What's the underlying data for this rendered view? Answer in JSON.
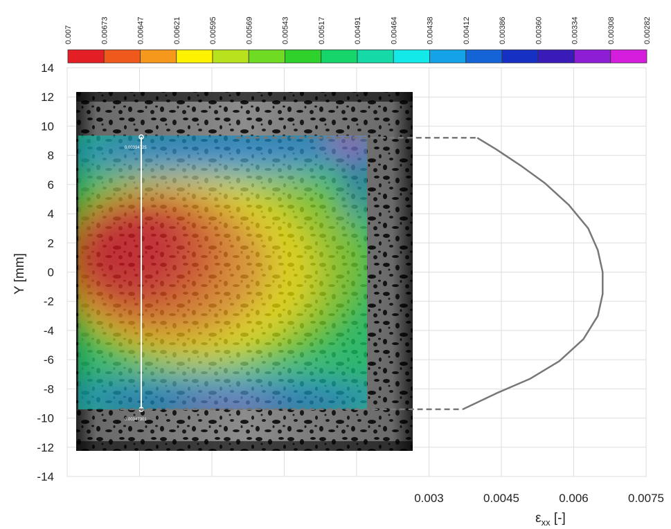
{
  "chart_data": {
    "type": "line",
    "colorbar": {
      "labels": [
        "0.007",
        "0.00673",
        "0.00647",
        "0.00621",
        "0.00595",
        "0.00569",
        "0.00543",
        "0.00517",
        "0.00491",
        "0.00464",
        "0.00438",
        "0.00412",
        "0.00386",
        "0.00360",
        "0.00334",
        "0.00308",
        "0.00282"
      ],
      "colors": [
        "#e31e24",
        "#ef5a1c",
        "#f6981c",
        "#fff200",
        "#b7e21d",
        "#6fdb23",
        "#2fd22b",
        "#16d56a",
        "#15d9a7",
        "#14e9e9",
        "#14a3e6",
        "#1464d8",
        "#1730c4",
        "#3a1ab8",
        "#8d1ed6",
        "#d51edd"
      ]
    },
    "ylabel": "Y [mm]",
    "xlabel": "εxx [-]",
    "yticks": [
      "14",
      "12",
      "10",
      "8",
      "6",
      "4",
      "2",
      "0",
      "-2",
      "-4",
      "-6",
      "-8",
      "-10",
      "-12",
      "-14"
    ],
    "xticks": [
      "0.003",
      "0.0045",
      "0.006",
      "0.0075"
    ],
    "ylim": [
      -14,
      14
    ],
    "xlim": [
      -0.0045,
      0.0075
    ],
    "grid": true,
    "series": [
      {
        "style": "solid",
        "color": "#777777",
        "points": [
          [
            0.004,
            9.2
          ],
          [
            0.0044,
            8.4
          ],
          [
            0.0049,
            7.3
          ],
          [
            0.0054,
            6.1
          ],
          [
            0.0059,
            4.6
          ],
          [
            0.0063,
            3.0
          ],
          [
            0.0065,
            1.5
          ],
          [
            0.0066,
            0.0
          ],
          [
            0.0066,
            -1.5
          ],
          [
            0.0065,
            -3.0
          ],
          [
            0.0062,
            -4.6
          ],
          [
            0.0057,
            -6.1
          ],
          [
            0.0051,
            -7.3
          ],
          [
            0.0044,
            -8.3
          ],
          [
            0.0037,
            -9.4
          ]
        ]
      },
      {
        "style": "dashed",
        "color": "#777777",
        "points": [
          [
            -0.001,
            9.2
          ],
          [
            0.004,
            9.2
          ]
        ]
      },
      {
        "style": "dashed",
        "color": "#777777",
        "points": [
          [
            -0.0034,
            -9.4
          ],
          [
            0.0037,
            -9.4
          ]
        ]
      }
    ],
    "probe": {
      "top_label": "0.00334725",
      "bottom_label": "0.00347301"
    }
  }
}
